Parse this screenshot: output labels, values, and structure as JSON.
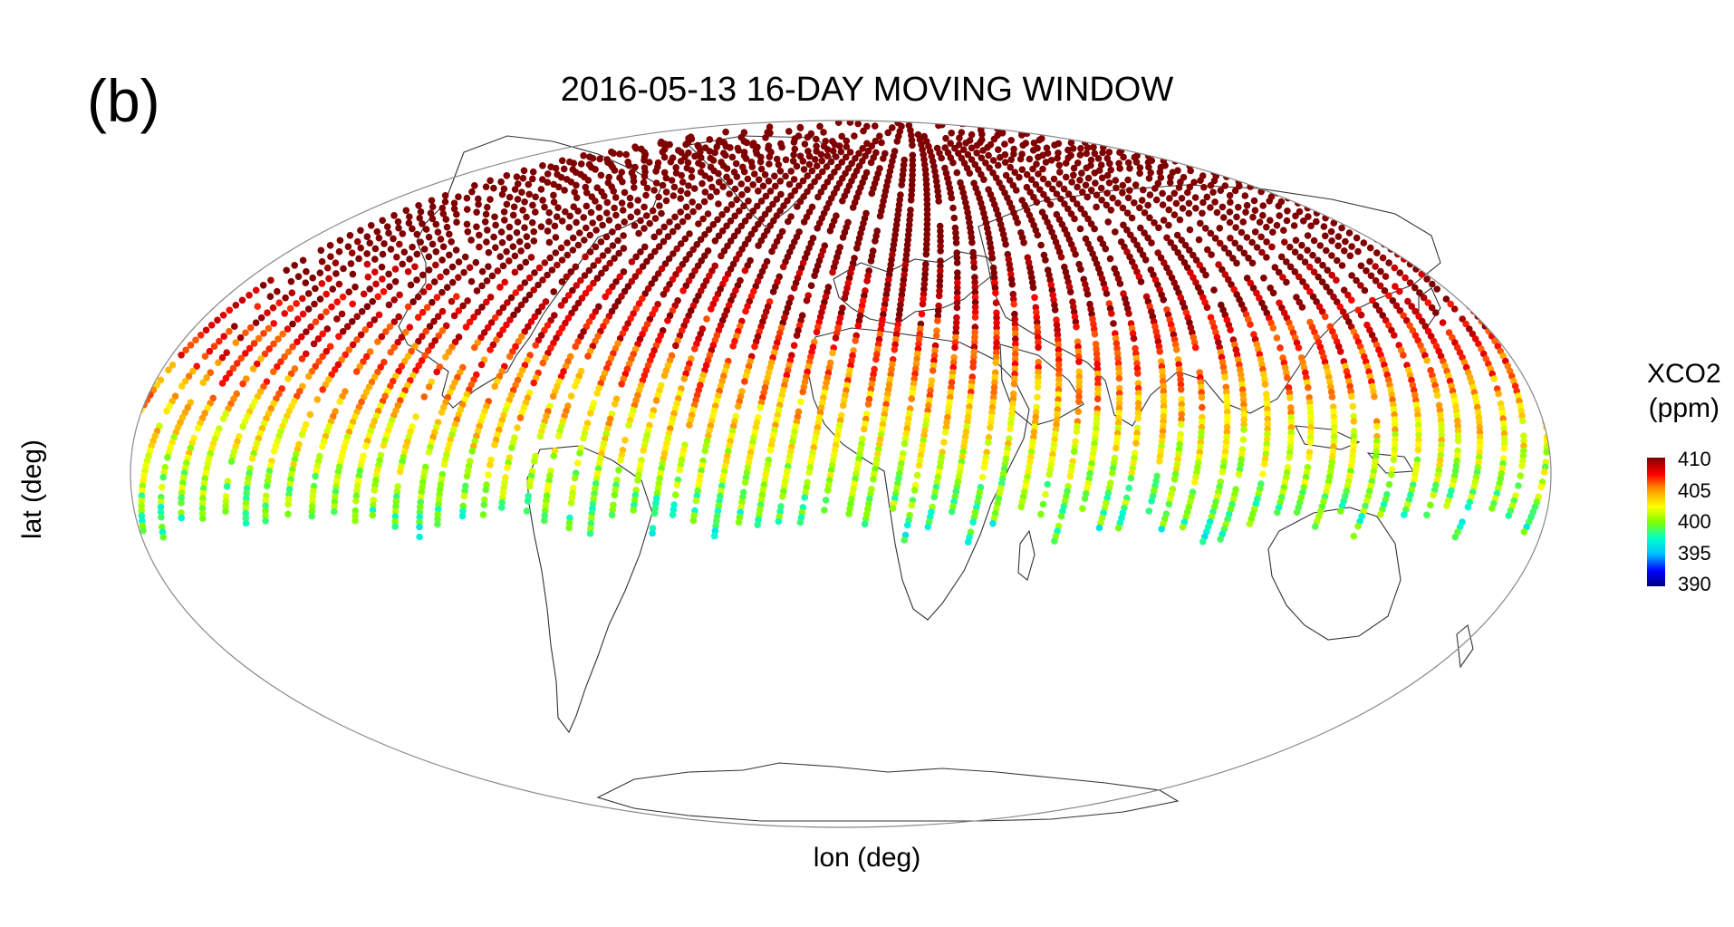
{
  "panel_label": "(b)",
  "map": {
    "title": "2016-05-13 16-DAY MOVING WINDOW",
    "projection": "Mollweide",
    "xlabel": "lon (deg)",
    "ylabel": "lat (deg)",
    "variable": "XCO2",
    "unit": "(ppm)",
    "colorbar": {
      "ticks": [
        "410",
        "405",
        "400",
        "395",
        "390"
      ],
      "range": [
        390,
        410
      ],
      "colormap": "jet",
      "stops": [
        "#00007f",
        "#0000ff",
        "#00bfff",
        "#00ffcc",
        "#7fff00",
        "#ffff00",
        "#ff9900",
        "#ff0000",
        "#7f0000"
      ]
    },
    "colors": {
      "outline": "#888888",
      "coast": "#333333"
    }
  }
}
